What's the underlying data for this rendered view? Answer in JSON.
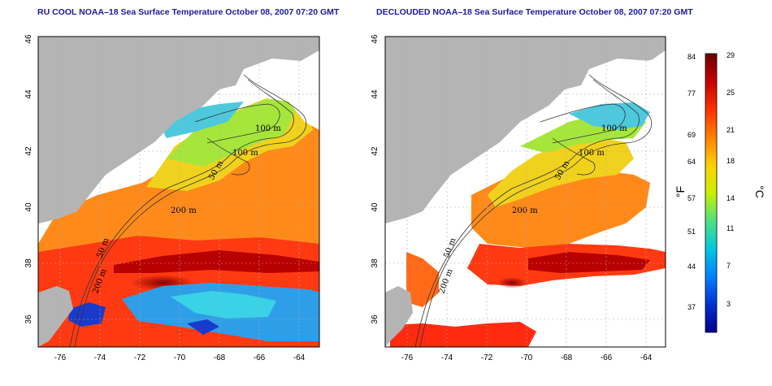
{
  "maps": [
    {
      "title": "RU COOL NOAA–18 Sea Surface Temperature October 08, 2007 07:20 GMT",
      "lat_ticks": [
        "46",
        "44",
        "42",
        "40",
        "38",
        "36"
      ],
      "lon_ticks": [
        "-76",
        "-74",
        "-72",
        "-70",
        "-68",
        "-66",
        "-64"
      ],
      "contour_labels": [
        "100 m",
        "100 m",
        "50 m",
        "200 m",
        "50 m",
        "200 m"
      ]
    },
    {
      "title": "DECLOUDED NOAA–18 Sea Surface Temperature October 08, 2007 07:20 GMT",
      "lat_ticks": [
        "46",
        "44",
        "42",
        "40",
        "38",
        "36"
      ],
      "lon_ticks": [
        "-76",
        "-74",
        "-72",
        "-70",
        "-68",
        "-66",
        "-64"
      ],
      "contour_labels": [
        "100 m",
        "100 m",
        "50 m",
        "200 m",
        "50 m",
        "200 m"
      ]
    }
  ],
  "colorbar": {
    "fahrenheit_ticks": [
      "84",
      "77",
      "69",
      "64",
      "57",
      "51",
      "44",
      "37"
    ],
    "celsius_ticks": [
      "29",
      "25",
      "21",
      "18",
      "14",
      "11",
      "7",
      "3"
    ],
    "fahrenheit_unit": "°F",
    "celsius_unit": "°C",
    "colors": [
      "#6a0000",
      "#c80000",
      "#ff3000",
      "#ff8000",
      "#ffd000",
      "#c8f000",
      "#50e080",
      "#00c8e0",
      "#0080ff",
      "#0030d0",
      "#00008c"
    ]
  },
  "legend_colors": {
    "land": "#b4b4b4",
    "no_data": "#ffffff",
    "contour": "#333333",
    "title": "#1a1a9c"
  }
}
